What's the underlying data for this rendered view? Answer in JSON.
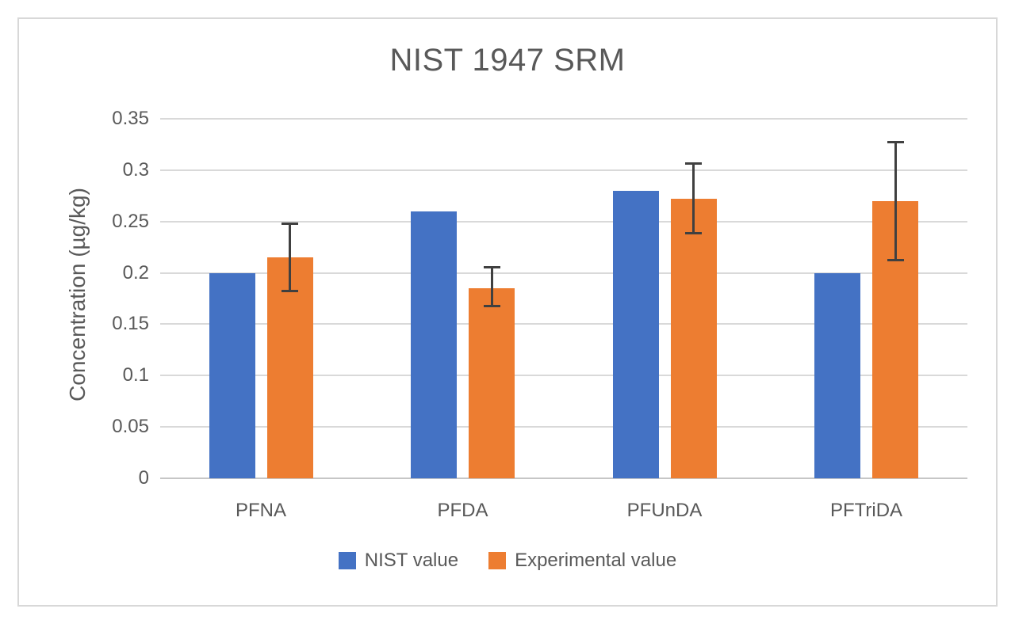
{
  "window": {
    "background_color": "#ffffff",
    "frame_border_color": "#d8d8d8"
  },
  "chart_data": {
    "type": "bar",
    "title": "NIST 1947 SRM",
    "xlabel": "",
    "ylabel": "Concentration (µg/kg)",
    "categories": [
      "PFNA",
      "PFDA",
      "PFUnDA",
      "PFTriDA"
    ],
    "series": [
      {
        "name": "NIST value",
        "color": "#4472C4",
        "values": [
          0.2,
          0.26,
          0.28,
          0.2
        ]
      },
      {
        "name": "Experimental value",
        "color": "#ED7D31",
        "values": [
          0.215,
          0.185,
          0.272,
          0.27
        ],
        "error_low": [
          0.182,
          0.167,
          0.238,
          0.212
        ],
        "error_high": [
          0.248,
          0.206,
          0.307,
          0.328
        ],
        "error_color": "#404040"
      }
    ],
    "ylim": [
      0,
      0.35
    ],
    "ytick_step": 0.05,
    "ytick_labels": [
      "0",
      "0.05",
      "0.1",
      "0.15",
      "0.2",
      "0.25",
      "0.3",
      "0.35"
    ],
    "grid": true,
    "gridline_color": "#d9d9d9",
    "axis_line_color": "#c6c6c6",
    "text_color": "#595959",
    "legend_position": "bottom"
  }
}
